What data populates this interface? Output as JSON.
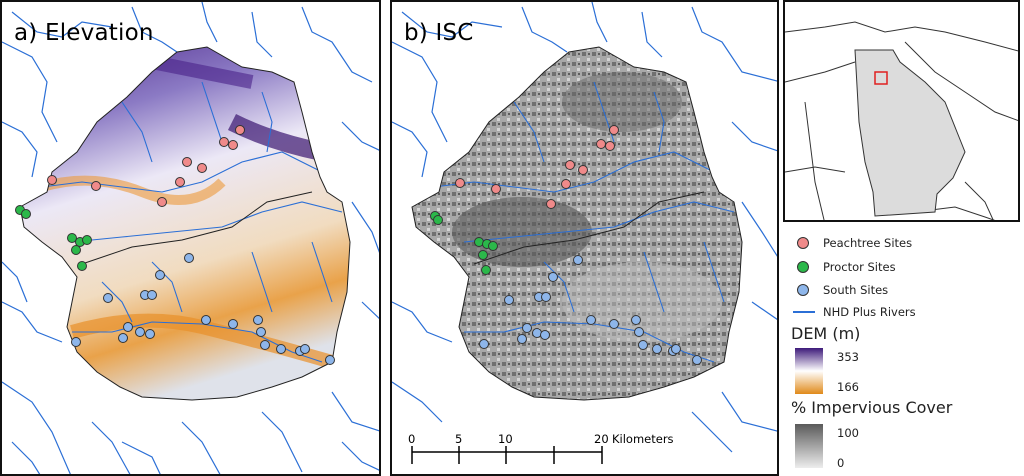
{
  "panels": {
    "a_label": "a) Elevation",
    "b_label": "b) ISC"
  },
  "legend": {
    "peachtree": "Peachtree Sites",
    "proctor": "Proctor Sites",
    "south": "South Sites",
    "rivers": "NHD Plus Rivers",
    "dem_title": "DEM (m)",
    "dem_high": "353",
    "dem_low": "166",
    "isc_title": "% Impervious Cover",
    "isc_high": "100",
    "isc_low": "0"
  },
  "scalebar": {
    "ticks": [
      "0",
      "5",
      "10",
      "20"
    ],
    "unit": "Kilometers"
  },
  "colors": {
    "peachtree": "#f08a8a",
    "proctor": "#2bb84a",
    "south": "#8eb6ea",
    "river": "#2b6fd6",
    "dem_high": "#3d1a7a",
    "dem_low": "#e08a1a",
    "state_fill": "#dcdcdc",
    "inset_box": "#e02020"
  },
  "icons": {
    "site_marker": "circle-icon",
    "river": "line-icon"
  }
}
